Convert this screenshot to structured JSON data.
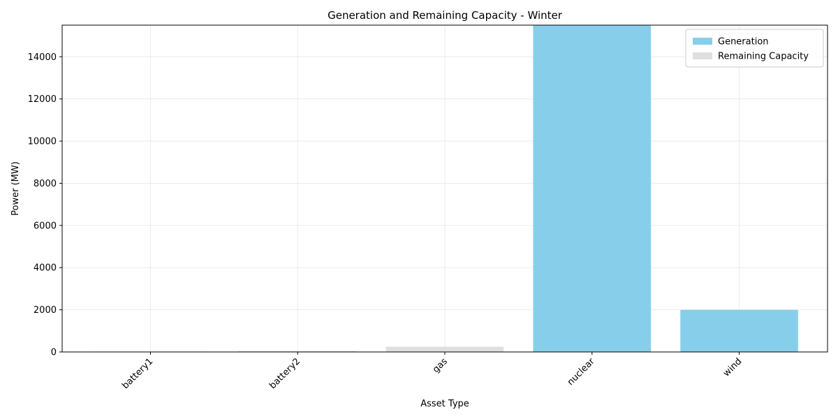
{
  "chart_data": {
    "type": "bar",
    "stacked": true,
    "title": "Generation and Remaining Capacity - Winter",
    "xlabel": "Asset Type",
    "ylabel": "Power (MW)",
    "categories": [
      "battery1",
      "battery2",
      "gas",
      "nuclear",
      "wind"
    ],
    "series": [
      {
        "name": "Generation",
        "color": "#87ceeb",
        "values": [
          0,
          0,
          0,
          15500,
          2000
        ]
      },
      {
        "name": "Remaining Capacity",
        "color": "#dfdfdf",
        "values": [
          20,
          50,
          250,
          0,
          0
        ]
      }
    ],
    "ylim": [
      0,
      15500
    ],
    "yticks": [
      0,
      2000,
      4000,
      6000,
      8000,
      10000,
      12000,
      14000
    ],
    "grid": true,
    "legend_position": "top-right",
    "xtick_rotation": 45
  }
}
